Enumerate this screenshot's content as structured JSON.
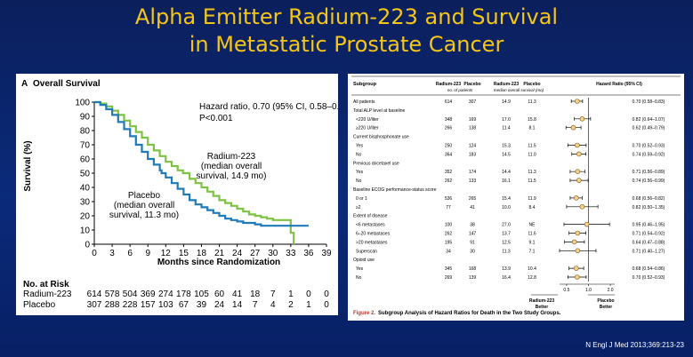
{
  "slide": {
    "title_line1": "Alpha Emitter Radium-223 and Survival",
    "title_line2": "in Metastatic Prostate Cancer",
    "citation": "N Engl J Med 2013;369:213-23",
    "title_color": "#f5c518"
  },
  "chart_data": [
    {
      "type": "line",
      "panel_label": "A",
      "title": "Overall Survival",
      "xlabel": "Months since Randomization",
      "ylabel": "Survival (%)",
      "xlim": [
        0,
        39
      ],
      "ylim": [
        0,
        100
      ],
      "xticks": [
        0,
        3,
        6,
        9,
        12,
        15,
        18,
        21,
        24,
        27,
        30,
        33,
        36,
        39
      ],
      "yticks": [
        0,
        10,
        20,
        30,
        40,
        50,
        60,
        70,
        80,
        90,
        100
      ],
      "hr_line1": "Hazard ratio, 0.70 (95% CI, 0.58–0.83)",
      "hr_line2": "P<0.001",
      "annotation_radium": [
        "Radium-223",
        "(median overall",
        "survival, 14.9 mo)"
      ],
      "annotation_placebo": [
        "Placebo",
        "(median overall",
        "survival, 11.3 mo)"
      ],
      "series": [
        {
          "name": "Radium-223",
          "color": "#7dc242",
          "x": [
            0,
            1,
            2,
            3,
            4,
            5,
            6,
            7,
            8,
            9,
            10,
            11,
            12,
            13,
            14,
            14.9,
            16,
            17,
            18,
            19,
            20,
            21,
            22,
            23,
            24,
            25,
            26,
            27,
            28,
            29,
            30,
            31,
            32,
            33,
            33.5
          ],
          "y": [
            100,
            99,
            97,
            94,
            91,
            87,
            83,
            79,
            75,
            70,
            66,
            62,
            58,
            55,
            52,
            50,
            46,
            43,
            40,
            37,
            34,
            31,
            29,
            27,
            25,
            23,
            21,
            20,
            19,
            18,
            17,
            17,
            17,
            8,
            0
          ]
        },
        {
          "name": "Placebo",
          "color": "#1f7ab8",
          "x": [
            0,
            1,
            2,
            3,
            4,
            5,
            6,
            7,
            8,
            9,
            10,
            11,
            11.3,
            12,
            13,
            14,
            15,
            16,
            17,
            18,
            19,
            20,
            21,
            22,
            23,
            24,
            25,
            26,
            27,
            28,
            30,
            33,
            36
          ],
          "y": [
            100,
            98,
            95,
            91,
            86,
            81,
            76,
            70,
            65,
            60,
            56,
            52,
            50,
            47,
            43,
            39,
            35,
            31,
            28,
            26,
            24,
            22,
            20,
            18,
            17,
            16,
            15,
            15,
            14,
            13,
            13,
            13,
            13
          ]
        }
      ],
      "at_risk": {
        "title": "No. at Risk",
        "rows": [
          {
            "label": "Radium-223",
            "values": [
              "614",
              "578",
              "504",
              "369",
              "274",
              "178",
              "105",
              "60",
              "41",
              "18",
              "7",
              "1",
              "0",
              "0"
            ]
          },
          {
            "label": "Placebo",
            "values": [
              "307",
              "288",
              "228",
              "157",
              "103",
              "67",
              "39",
              "24",
              "14",
              "7",
              "4",
              "2",
              "1",
              "0"
            ]
          }
        ]
      }
    },
    {
      "type": "forest",
      "headers": {
        "subgroup": "Subgroup",
        "n_radium": "Radium-223",
        "n_placebo": "Placebo",
        "n_sub": "no. of patients",
        "m_radium": "Radium-223",
        "m_placebo": "Placebo",
        "m_sub": "median overall survival (mo)",
        "hr": "Hazard Ratio (95% CI)"
      },
      "axis": {
        "ticks": [
          "0.5",
          "1.0",
          "2.0"
        ],
        "tick_values": [
          0.5,
          1.0,
          2.0
        ],
        "xlim": [
          0.4,
          2.3
        ],
        "left_label": [
          "Radium-223",
          "Better"
        ],
        "right_label": [
          "Placebo",
          "Better"
        ]
      },
      "caption_label": "Figure 2.",
      "caption_text": "Subgroup Analysis of Hazard Ratios for Death in the Two Study Groups.",
      "rows": [
        {
          "label": "All patients",
          "heading": false,
          "n_r": "614",
          "n_p": "307",
          "m_r": "14.9",
          "m_p": "11.3",
          "hr": 0.7,
          "lo": 0.58,
          "hi": 0.83,
          "ci": "0.70 (0.58–0.83)"
        },
        {
          "label": "Total ALP level at baseline",
          "heading": true
        },
        {
          "label": "<220 U/liter",
          "heading": false,
          "indent": true,
          "n_r": "348",
          "n_p": "169",
          "m_r": "17.0",
          "m_p": "15.8",
          "hr": 0.82,
          "lo": 0.64,
          "hi": 1.07,
          "ci": "0.82 (0.64–1.07)"
        },
        {
          "label": "≥220 U/liter",
          "heading": false,
          "indent": true,
          "n_r": "266",
          "n_p": "138",
          "m_r": "11.4",
          "m_p": "8.1",
          "hr": 0.62,
          "lo": 0.49,
          "hi": 0.79,
          "ci": "0.62 (0.49–0.79)"
        },
        {
          "label": "Current bisphosphonate use",
          "heading": true
        },
        {
          "label": "Yes",
          "heading": false,
          "indent": true,
          "n_r": "250",
          "n_p": "124",
          "m_r": "15.3",
          "m_p": "11.5",
          "hr": 0.7,
          "lo": 0.52,
          "hi": 0.93,
          "ci": "0.70 (0.52–0.93)"
        },
        {
          "label": "No",
          "heading": false,
          "indent": true,
          "n_r": "364",
          "n_p": "183",
          "m_r": "14.5",
          "m_p": "11.0",
          "hr": 0.74,
          "lo": 0.59,
          "hi": 0.92,
          "ci": "0.74 (0.59–0.92)"
        },
        {
          "label": "Previous docetaxel use",
          "heading": true
        },
        {
          "label": "Yes",
          "heading": false,
          "indent": true,
          "n_r": "352",
          "n_p": "174",
          "m_r": "14.4",
          "m_p": "11.3",
          "hr": 0.71,
          "lo": 0.56,
          "hi": 0.89,
          "ci": "0.71 (0.56–0.89)"
        },
        {
          "label": "No",
          "heading": false,
          "indent": true,
          "n_r": "262",
          "n_p": "133",
          "m_r": "16.1",
          "m_p": "11.5",
          "hr": 0.74,
          "lo": 0.56,
          "hi": 0.99,
          "ci": "0.74 (0.56–0.99)"
        },
        {
          "label": "Baseline ECOG performance-status score",
          "heading": true
        },
        {
          "label": "0 or 1",
          "heading": false,
          "indent": true,
          "n_r": "536",
          "n_p": "265",
          "m_r": "15.4",
          "m_p": "11.9",
          "hr": 0.68,
          "lo": 0.56,
          "hi": 0.82,
          "ci": "0.68 (0.56–0.82)"
        },
        {
          "label": "≥2",
          "heading": false,
          "indent": true,
          "n_r": "77",
          "n_p": "41",
          "m_r": "10.0",
          "m_p": "8.4",
          "hr": 0.82,
          "lo": 0.5,
          "hi": 1.35,
          "ci": "0.82 (0.50–1.35)"
        },
        {
          "label": "Extent of disease",
          "heading": true
        },
        {
          "label": "<6 metastases",
          "heading": false,
          "indent": true,
          "n_r": "100",
          "n_p": "38",
          "m_r": "27.0",
          "m_p": "NE",
          "hr": 0.95,
          "lo": 0.46,
          "hi": 1.95,
          "ci": "0.95 (0.46–1.95)"
        },
        {
          "label": "6–20 metastases",
          "heading": false,
          "indent": true,
          "n_r": "262",
          "n_p": "147",
          "m_r": "13.7",
          "m_p": "11.6",
          "hr": 0.71,
          "lo": 0.54,
          "hi": 0.92,
          "ci": "0.71 (0.54–0.92)"
        },
        {
          "label": ">20 metastases",
          "heading": false,
          "indent": true,
          "n_r": "195",
          "n_p": "91",
          "m_r": "12.5",
          "m_p": "9.1",
          "hr": 0.64,
          "lo": 0.47,
          "hi": 0.88,
          "ci": "0.64 (0.47–0.88)"
        },
        {
          "label": "Superscan",
          "heading": false,
          "indent": true,
          "n_r": "34",
          "n_p": "30",
          "m_r": "11.3",
          "m_p": "7.1",
          "hr": 0.71,
          "lo": 0.4,
          "hi": 1.27,
          "ci": "0.71 (0.40–1.27)"
        },
        {
          "label": "Opioid use",
          "heading": true
        },
        {
          "label": "Yes",
          "heading": false,
          "indent": true,
          "n_r": "345",
          "n_p": "168",
          "m_r": "13.9",
          "m_p": "10.4",
          "hr": 0.68,
          "lo": 0.54,
          "hi": 0.86,
          "ci": "0.68 (0.54–0.86)"
        },
        {
          "label": "No",
          "heading": false,
          "indent": true,
          "n_r": "269",
          "n_p": "139",
          "m_r": "16.4",
          "m_p": "12.8",
          "hr": 0.7,
          "lo": 0.52,
          "hi": 0.93,
          "ci": "0.70 (0.52–0.93)"
        }
      ]
    }
  ]
}
